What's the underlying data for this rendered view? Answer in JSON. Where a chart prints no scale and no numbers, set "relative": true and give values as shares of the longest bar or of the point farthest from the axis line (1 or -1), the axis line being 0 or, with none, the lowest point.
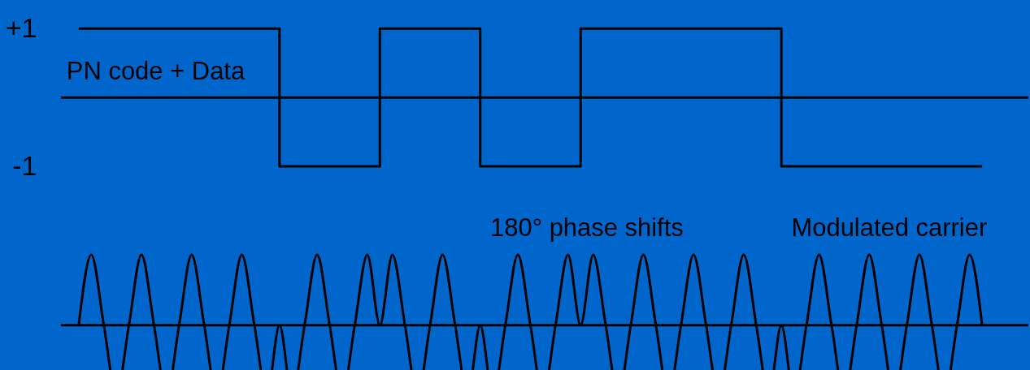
{
  "chart_data": [
    {
      "type": "step",
      "categories": [
        null,
        null,
        null,
        null,
        null,
        null,
        null,
        null,
        null,
        null
      ],
      "series": [
        {
          "color": "#000000",
          "values": [
            1,
            1,
            -1,
            1,
            -1,
            1,
            1,
            -1,
            -1,
            -1
          ]
        }
      ],
      "ylim": [
        -1,
        1
      ],
      "yticks": [
        {
          "value": 1,
          "label": "+1"
        },
        -1
      ],
      "tick_labels": "y",
      "ref_lines": [
        {
          "axis": "y",
          "value": 0,
          "color": "#000000"
        }
      ],
      "annotations": [
        "PN code + Data"
      ]
    },
    {
      "type": "line",
      "relative": true,
      "tick_labels": false,
      "categories": [
        null,
        null,
        null,
        null,
        null,
        null,
        null,
        null,
        null,
        null,
        null,
        null,
        null,
        null,
        null,
        null,
        null,
        null,
        null,
        null,
        null,
        null,
        null,
        null,
        null,
        null,
        null,
        null,
        null,
        null,
        null,
        null,
        null,
        null,
        null,
        null,
        null,
        null,
        null,
        null,
        null,
        null,
        null,
        null,
        null,
        null,
        null,
        null,
        null,
        null,
        null,
        null,
        null,
        null,
        null,
        null,
        null,
        null,
        null,
        null,
        null,
        null,
        null,
        null,
        null,
        null,
        null,
        null,
        null,
        null,
        null,
        null,
        null
      ],
      "series": [
        {
          "color": "#000000",
          "values": [
            0,
            1,
            0,
            -1,
            0,
            1,
            0,
            -1,
            0,
            1,
            0,
            -1,
            0,
            1,
            0,
            -1,
            0,
            -1,
            0,
            1,
            0,
            -1,
            0,
            1,
            0,
            1,
            0,
            -1,
            0,
            1,
            0,
            -1,
            0,
            -1,
            0,
            1,
            0,
            -1,
            0,
            1,
            0,
            1,
            0,
            -1,
            0,
            1,
            0,
            -1,
            0,
            1,
            0,
            -1,
            0,
            1,
            0,
            -1,
            0,
            -1,
            0,
            1,
            0,
            -1,
            0,
            1,
            0,
            -1,
            0,
            1,
            0,
            -1,
            0,
            1,
            0
          ]
        }
      ],
      "annotations": [
        "180° phase shifts",
        "Modulated carrier"
      ]
    }
  ]
}
